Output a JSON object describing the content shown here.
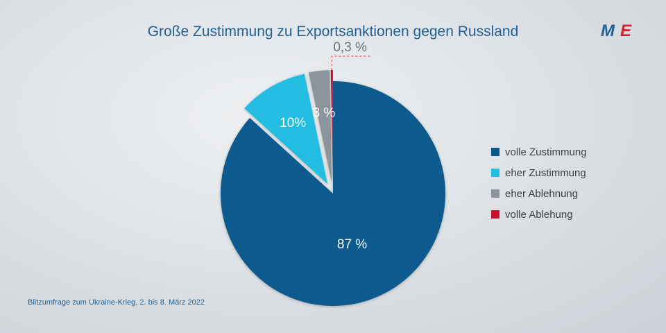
{
  "title": "Große Zustimmung zu Exportsanktionen gegen Russland",
  "logo": {
    "text_m": "M",
    "text_e": "E"
  },
  "footnote": "Blitzumfrage zum Ukraine-Krieg, 2. bis 8. März 2022",
  "chart_data": {
    "type": "pie",
    "title": "Große Zustimmung zu Exportsanktionen gegen Russland",
    "legend_position": "right",
    "slices": [
      {
        "name": "volle Zustimmung",
        "value": 87,
        "label": "87 %",
        "color": "#0b5a8e",
        "exploded": false
      },
      {
        "name": "eher Zustimmung",
        "value": 10,
        "label": "10%",
        "color": "#22bde0",
        "exploded": true
      },
      {
        "name": "eher Ablehnung",
        "value": 3,
        "label": "3 %",
        "color": "#8c949b",
        "exploded": true
      },
      {
        "name": "volle Ablehung",
        "value": 0.3,
        "label": "0,3 %",
        "color": "#c8102e",
        "exploded": true
      }
    ]
  }
}
